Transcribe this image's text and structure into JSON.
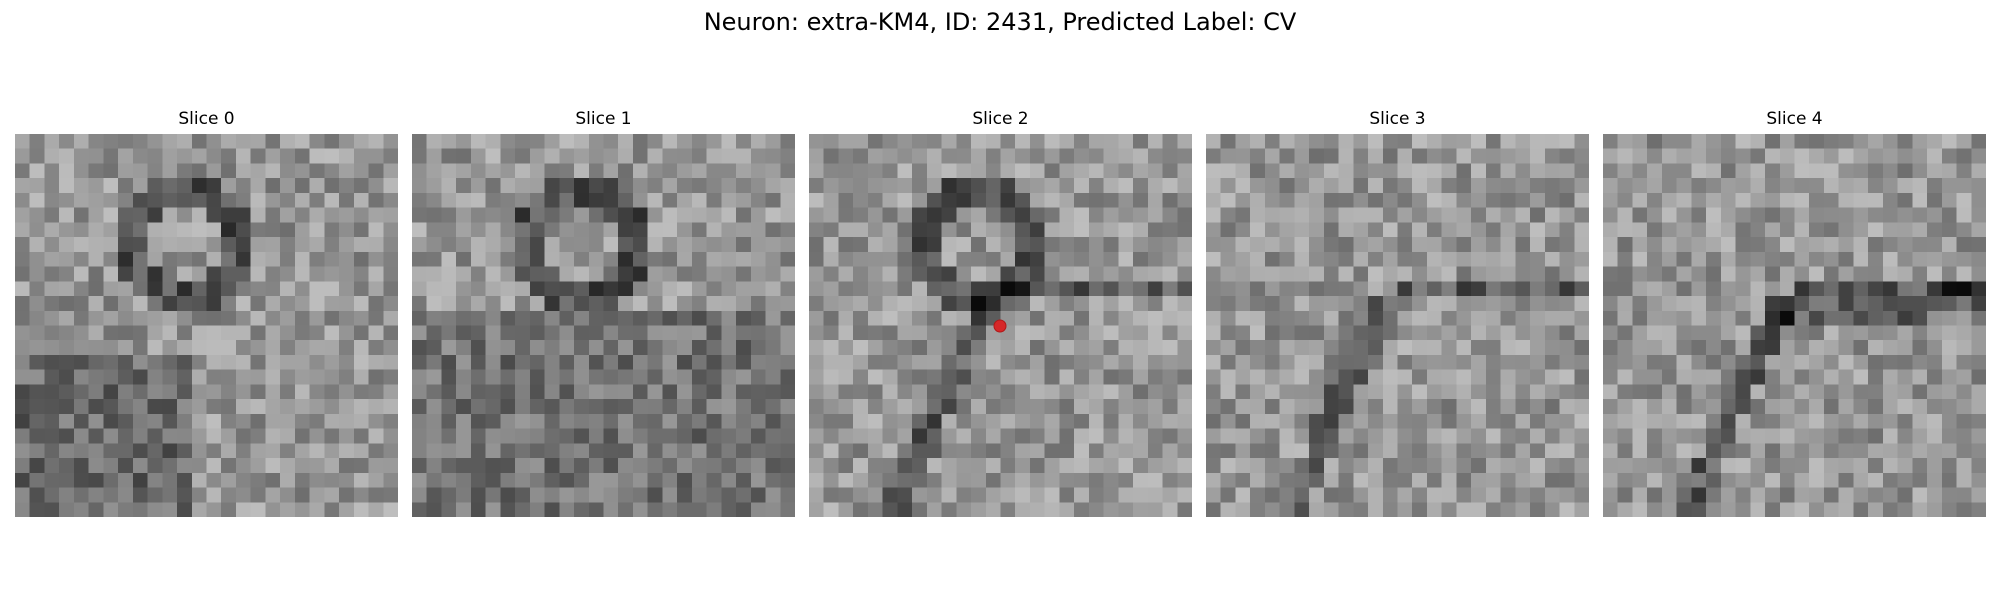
{
  "figure": {
    "title": "Neuron: extra-KM4, ID: 2431, Predicted Label: CV",
    "marker_color": "#d62728"
  },
  "panels": [
    {
      "label": "Slice 0"
    },
    {
      "label": "Slice 1"
    },
    {
      "label": "Slice 2"
    },
    {
      "label": "Slice 3"
    },
    {
      "label": "Slice 4"
    }
  ]
}
